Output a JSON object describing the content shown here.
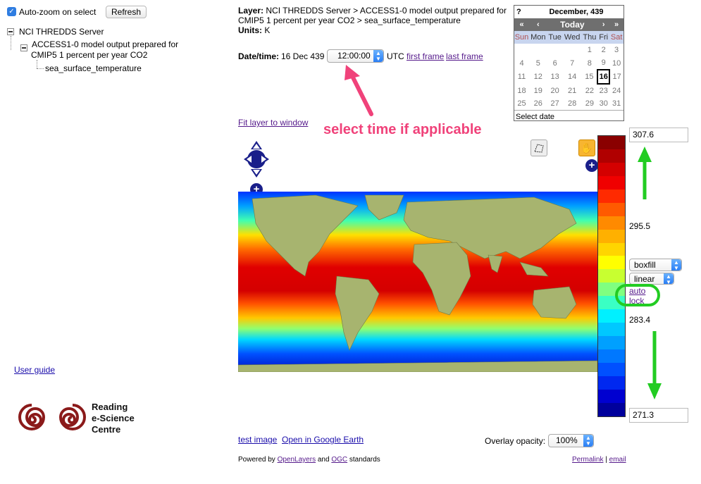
{
  "sidebar": {
    "autozoom_label": "Auto-zoom on select",
    "refresh_label": "Refresh",
    "tree": {
      "server": "NCI THREDDS Server",
      "dataset_line1": "ACCESS1-0 model output prepared for",
      "dataset_line2": "CMIP5 1 percent per year CO2",
      "variable": "sea_surface_temperature"
    },
    "user_guide": "User guide",
    "logo": {
      "line1": "Reading",
      "line2": "e-Science",
      "line3": "Centre",
      "color": "#8b1a1a"
    }
  },
  "info": {
    "layer_label": "Layer:",
    "layer_text_line1": "NCI THREDDS Server > ACCESS1-0 model output prepared for",
    "layer_text_line2": "CMIP5 1 percent per year CO2 > sea_surface_temperature",
    "units_label": "Units:",
    "units_value": "K",
    "datetime_label": "Date/time:",
    "date_value": "16 Dec 439",
    "time_value": "12:00:00",
    "utc": "UTC",
    "first_frame": "first frame",
    "last_frame": "last frame",
    "fit_layer": "Fit layer to window"
  },
  "calendar": {
    "help": "?",
    "title": "December, 439",
    "nav": [
      "«",
      "‹",
      "Today",
      "›",
      "»"
    ],
    "days": [
      "Sun",
      "Mon",
      "Tue",
      "Wed",
      "Thu",
      "Fri",
      "Sat"
    ],
    "weeks": [
      [
        "",
        "",
        "",
        "",
        "1",
        "2",
        "3"
      ],
      [
        "4",
        "5",
        "6",
        "7",
        "8",
        "9",
        "10"
      ],
      [
        "11",
        "12",
        "13",
        "14",
        "15",
        "16",
        "17"
      ],
      [
        "18",
        "19",
        "20",
        "21",
        "22",
        "23",
        "24"
      ],
      [
        "25",
        "26",
        "27",
        "28",
        "29",
        "30",
        "31"
      ]
    ],
    "selected": "16",
    "footer": "Select date"
  },
  "annotation": {
    "text": "select time if applicable",
    "color": "#f0427a",
    "arrow_color": "#f0427a",
    "green": "#22cc22"
  },
  "legend": {
    "max": "307.6",
    "mid_high": "295.5",
    "mid_low": "283.4",
    "min": "271.3",
    "style_value": "boxfill",
    "scale_value": "linear",
    "auto_link": "auto",
    "lock_link": "lock",
    "colors": [
      "#8a0000",
      "#b00000",
      "#d40000",
      "#f00000",
      "#ff2a00",
      "#ff5a00",
      "#ff8a00",
      "#ffb000",
      "#ffd500",
      "#ffff00",
      "#c8ff30",
      "#80ff80",
      "#3affc4",
      "#00f0ff",
      "#00c8ff",
      "#00a0ff",
      "#0078ff",
      "#0050ff",
      "#0028f0",
      "#0000d0",
      "#00009c"
    ]
  },
  "bottom": {
    "test_image": "test image",
    "google_earth": "Open in Google Earth",
    "opacity_label": "Overlay opacity:",
    "opacity_value": "100%",
    "powered_prefix": "Powered by",
    "openlayers": "OpenLayers",
    "and": "and",
    "ogc": "OGC",
    "standards": "standards",
    "permalink": "Permalink",
    "separator": "|",
    "email": "email"
  }
}
